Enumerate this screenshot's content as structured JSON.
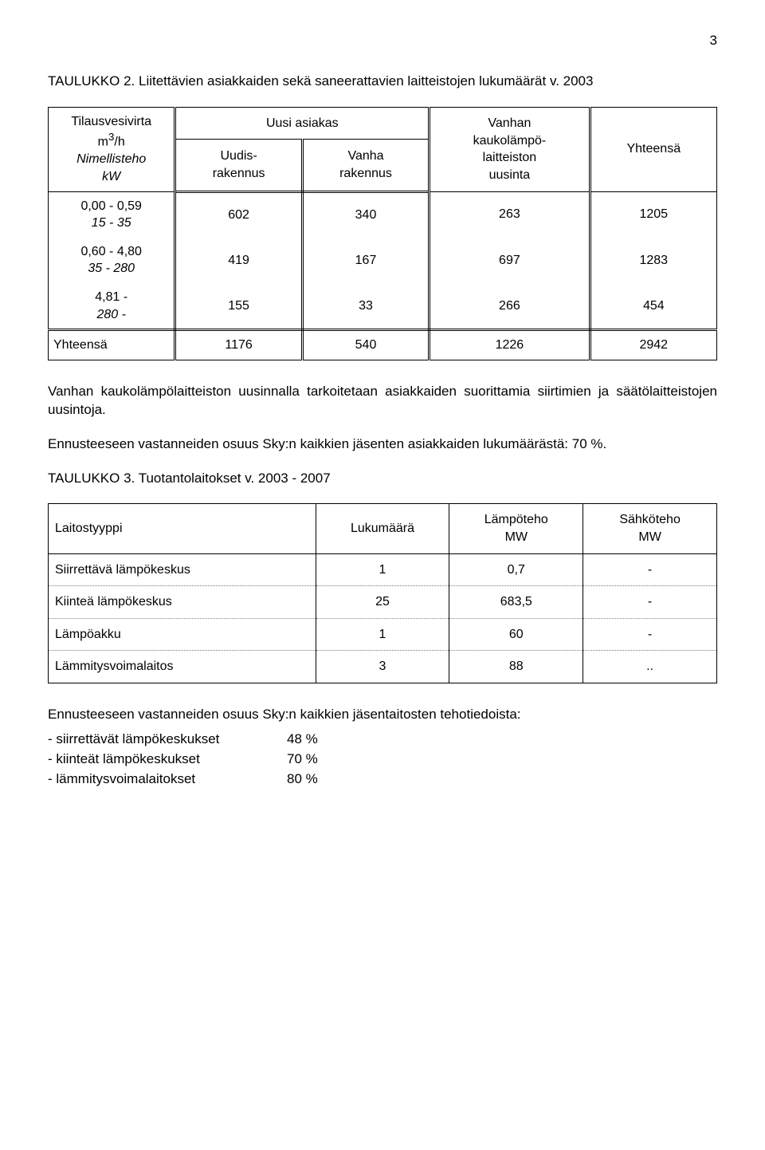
{
  "page_number": "3",
  "section1": {
    "caption": "TAULUKKO 2. Liitettävien asiakkaiden sekä saneerattavien laitteistojen lukumäärät v. 2003",
    "col_group1": "Tilausvesivirta\nm³/h\nNimellisteho\nkW",
    "col_group1_lines": [
      "Tilausvesivirta",
      "m",
      "3",
      "/h",
      "Nimellisteho",
      "kW"
    ],
    "col_group2": "Uusi asiakas",
    "col_sub_a": "Uudis-\nrakennus",
    "col_sub_b": "Vanha\nrakennus",
    "col_group3": "Vanhan\nkaukolämpö-\nlaitteiston\nuusinta",
    "col_group4": "Yhteensä",
    "rows": [
      {
        "label_a": "0,00 - 0,59",
        "label_b": "15 - 35",
        "a": "602",
        "b": "340",
        "c": "263",
        "d": "1205"
      },
      {
        "label_a": "0,60 - 4,80",
        "label_b": "35 - 280",
        "a": "419",
        "b": "167",
        "c": "697",
        "d": "1283"
      },
      {
        "label_a": "4,81 -",
        "label_b": "280 -",
        "a": "155",
        "b": "33",
        "c": "266",
        "d": "454"
      }
    ],
    "footer": {
      "label": "Yhteensä",
      "a": "1176",
      "b": "540",
      "c": "1226",
      "d": "2942"
    }
  },
  "para1": "Vanhan kaukolämpölaitteiston uusinnalla tarkoitetaan asiakkaiden suorittamia siirtimien ja säätölaitteistojen uusintoja.",
  "para2": "Ennusteeseen vastanneiden osuus Sky:n kaikkien jäsenten asiakkaiden lukumäärästä: 70 %.",
  "section2": {
    "caption": "TAULUKKO 3. Tuotantolaitokset v. 2003 - 2007",
    "headers": [
      "Laitostyyppi",
      "Lukumäärä",
      "Lämpöteho\nMW",
      "Sähköteho\nMW"
    ],
    "rows": [
      {
        "label": "Siirrettävä lämpökeskus",
        "a": "1",
        "b": "0,7",
        "c": "-"
      },
      {
        "label": "Kiinteä lämpökeskus",
        "a": "25",
        "b": "683,5",
        "c": "-"
      },
      {
        "label": "Lämpöakku",
        "a": "1",
        "b": "60",
        "c": "-"
      },
      {
        "label": "Lämmitysvoimalaitos",
        "a": "3",
        "b": "88",
        "c": ".."
      }
    ]
  },
  "para3": "Ennusteeseen vastanneiden osuus Sky:n kaikkien jäsentaitosten tehotiedoista:",
  "defs": [
    {
      "label": "- siirrettävät lämpökeskukset",
      "val": "48 %"
    },
    {
      "label": "- kiinteät lämpökeskukset",
      "val": "70 %"
    },
    {
      "label": "- lämmitysvoimalaitokset",
      "val": "80 %"
    }
  ]
}
